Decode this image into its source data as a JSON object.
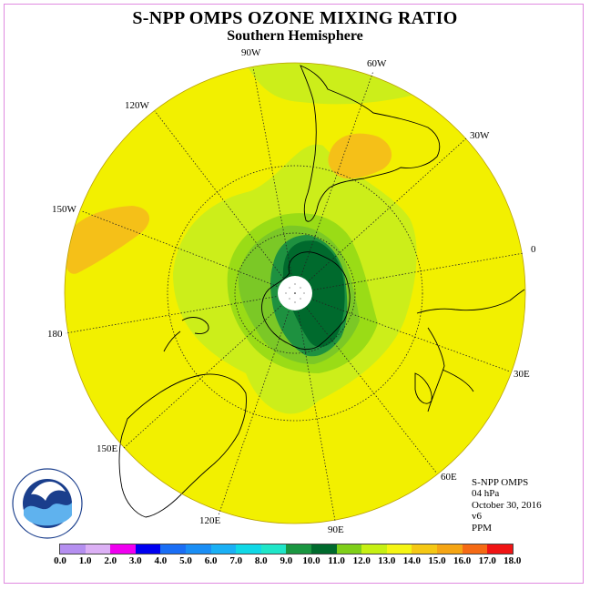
{
  "title": "S-NPP OMPS OZONE MIXING RATIO",
  "subtitle": "Southern Hemisphere",
  "longitude_labels": [
    "90W",
    "60W",
    "120W",
    "30W",
    "150W",
    "0",
    "180",
    "30E",
    "150E",
    "60E",
    "120E",
    "90E"
  ],
  "info": {
    "instrument": "S-NPP OMPS",
    "level": "04 hPa",
    "date": "October 30, 2016",
    "version": "v6",
    "units": "PPM"
  },
  "logo": {
    "text": "NOAA",
    "ring_text": "NATIONAL OCEANIC AND ATMOSPHERIC ADMINISTRATION · U.S. DEPARTMENT OF COMMERCE"
  },
  "colorbar": {
    "ticks": [
      "0.0",
      "1.0",
      "2.0",
      "3.0",
      "4.0",
      "5.0",
      "6.0",
      "7.0",
      "8.0",
      "9.0",
      "10.0",
      "11.0",
      "12.0",
      "13.0",
      "14.0",
      "15.0",
      "16.0",
      "17.0",
      "18.0"
    ],
    "colors": [
      "#b58ff0",
      "#dcb0f5",
      "#f000f0",
      "#0000f0",
      "#1a6ef5",
      "#1a8ef5",
      "#1ab0f5",
      "#10d8e6",
      "#1fe6c8",
      "#1a9641",
      "#006a2d",
      "#7fcf19",
      "#c6f013",
      "#f5f514",
      "#f5c814",
      "#f5a514",
      "#f56a14",
      "#f01414",
      "#8c5a3c"
    ]
  },
  "field_colors": {
    "yellow": "#f2f000",
    "yellow_green": "#ccee1a",
    "light_green": "#9adc16",
    "mid_green": "#7bc826",
    "green": "#1e9140",
    "dark_green": "#006a2d",
    "orange": "#f5c018",
    "polar_hole": "#ffffff"
  }
}
